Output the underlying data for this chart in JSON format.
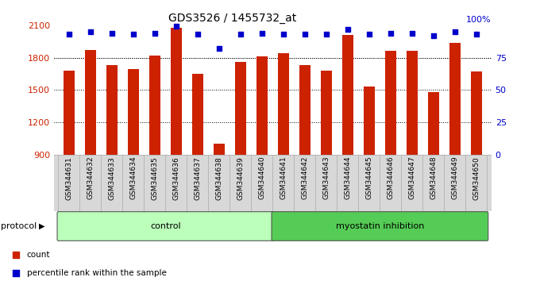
{
  "title": "GDS3526 / 1455732_at",
  "samples": [
    "GSM344631",
    "GSM344632",
    "GSM344633",
    "GSM344634",
    "GSM344635",
    "GSM344636",
    "GSM344637",
    "GSM344638",
    "GSM344639",
    "GSM344640",
    "GSM344641",
    "GSM344642",
    "GSM344643",
    "GSM344644",
    "GSM344645",
    "GSM344646",
    "GSM344647",
    "GSM344648",
    "GSM344649",
    "GSM344650"
  ],
  "counts": [
    1680,
    1870,
    1730,
    1690,
    1820,
    2080,
    1650,
    1000,
    1760,
    1810,
    1840,
    1730,
    1680,
    2010,
    1530,
    1860,
    1860,
    1480,
    1940,
    1670
  ],
  "percentiles": [
    93,
    95,
    94,
    93,
    94,
    99,
    93,
    82,
    93,
    94,
    93,
    93,
    93,
    97,
    93,
    94,
    94,
    92,
    95,
    93
  ],
  "groups": [
    {
      "label": "control",
      "start": 0,
      "end": 10,
      "color": "#bbffbb"
    },
    {
      "label": "myostatin inhibition",
      "start": 10,
      "end": 20,
      "color": "#55cc55"
    }
  ],
  "bar_color": "#cc2200",
  "percentile_color": "#0000cc",
  "ylim_left": [
    900,
    2100
  ],
  "ylim_right": [
    0,
    100
  ],
  "yticks_left": [
    900,
    1200,
    1500,
    1800,
    2100
  ],
  "yticks_right": [
    0,
    25,
    50,
    75,
    100
  ],
  "grid_values": [
    1200,
    1500,
    1800
  ],
  "background_color": "#ffffff",
  "xticklabel_bg": "#d8d8d8",
  "legend_count_label": "count",
  "legend_pct_label": "percentile rank within the sample",
  "protocol_label": "protocol"
}
